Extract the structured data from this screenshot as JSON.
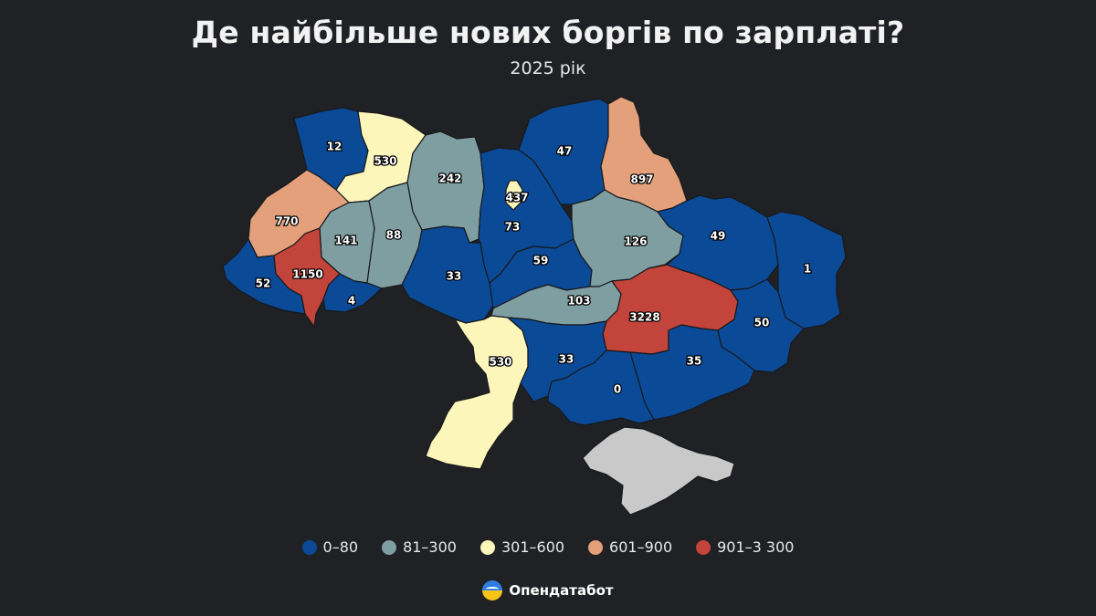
{
  "header": {
    "title": "Де найбільше нових боргів по зарплаті?",
    "subtitle": "2025 рік"
  },
  "colors": {
    "0-80": "#0b4a97",
    "81-300": "#7f9ea2",
    "301-600": "#fdf6bb",
    "601-900": "#e3a07b",
    "901-3300": "#c2443a",
    "crimea": "#c9c9c9",
    "background": "#1f2124"
  },
  "legend": [
    {
      "label": "0–80",
      "color": "#0b4a97"
    },
    {
      "label": "81–300",
      "color": "#7f9ea2"
    },
    {
      "label": "301–600",
      "color": "#fdf6bb"
    },
    {
      "label": "601–900",
      "color": "#e3a07b"
    },
    {
      "label": "901–3 300",
      "color": "#c2443a"
    }
  ],
  "regions": {
    "volyn": "12",
    "rivne": "530",
    "zhytomyr": "242",
    "kyiv_city": "437",
    "kyiv_oblast": "73",
    "chernihiv": "47",
    "sumy": "897",
    "lviv": "770",
    "ternopil": "141",
    "khmelnytskyi": "88",
    "vinnytsia": "33",
    "cherkasy": "59",
    "poltava": "126",
    "kharkiv": "49",
    "luhansk": "1",
    "zakarpattia": "52",
    "ivano_frankivsk": "1150",
    "chernivtsi": "4",
    "kirovohrad": "103",
    "dnipropetrovsk": "3228",
    "donetsk": "50",
    "odesa": "530",
    "mykolaiv": "33",
    "kherson": "0",
    "zaporizhzhia": "35"
  },
  "brand": {
    "name": "Опендатабот",
    "icon": "opendatabot-logo-icon"
  }
}
